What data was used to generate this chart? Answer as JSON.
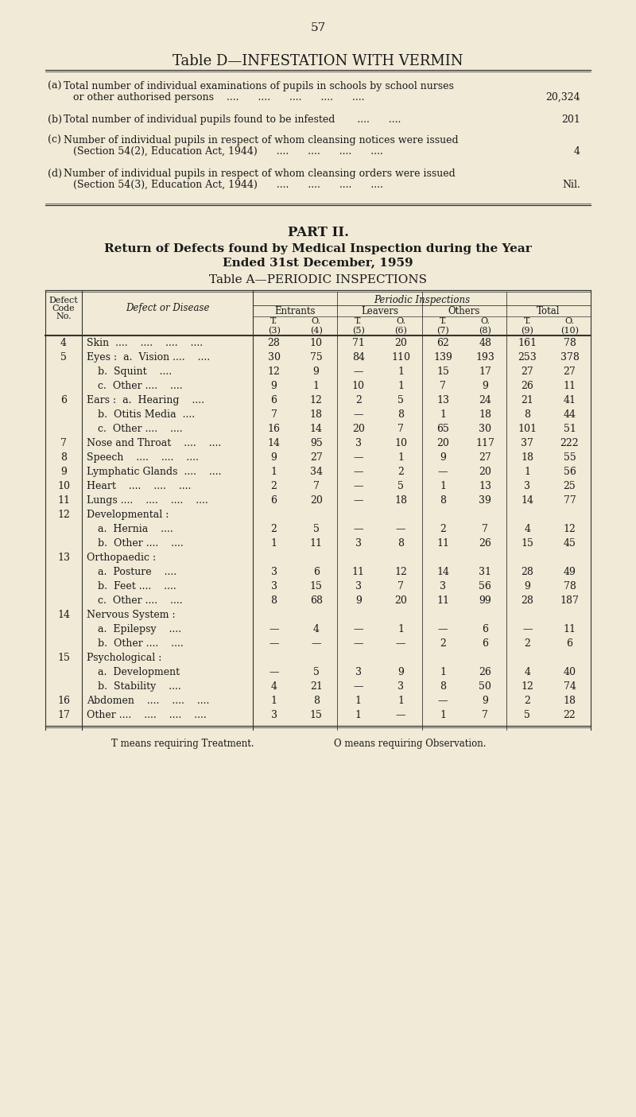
{
  "bg_color": "#f0ead6",
  "page_number": "57",
  "table_d_title": "Table D—INFESTATION WITH VERMIN",
  "table_d_rows": [
    {
      "label": "(a)",
      "text1": "Total number of individual examinations of pupils in schools by school nurses",
      "text2": "or other authorised persons    ....      ....      ....      ....      ....",
      "value": "20,324"
    },
    {
      "label": "(b)",
      "text1": "Total number of individual pupils found to be infested       ....      ....",
      "text2": "",
      "value": "201"
    },
    {
      "label": "(c)",
      "text1": "Number of individual pupils in respect of whom cleansing notices were issued",
      "text2": "(Section 54(2), Education Act, 1944)      ....      ....      ....      ....",
      "value": "4"
    },
    {
      "label": "(d)",
      "text1": "Number of individual pupils in respect of whom cleansing orders were issued",
      "text2": "(Section 54(3), Education Act, 1944)      ....      ....      ....      ....",
      "value": "Nil."
    }
  ],
  "part2_title": "PART II.",
  "part2_sub1": "Return of Defects found by Medical Inspection during the Year",
  "part2_sub2": "Ended 31st December, 1959",
  "table_a_title": "Table A—PERIODIC INSPECTIONS",
  "col_groups": [
    "Entrants",
    "Leavers",
    "Others",
    "Total"
  ],
  "col_subheaders": [
    "T.",
    "O.",
    "T.",
    "O.",
    "T.",
    "O.",
    "T.",
    "O."
  ],
  "col_nums": [
    "(3)",
    "(4)",
    "(5)",
    "(6)",
    "(7)",
    "(8)",
    "(9)",
    "(10)"
  ],
  "table_rows": [
    {
      "code": "4",
      "disease": "Skin  ....    ....    ....    ....",
      "indent": 0,
      "vals": [
        "28",
        "10",
        "71",
        "20",
        "62",
        "48",
        "161",
        "78"
      ]
    },
    {
      "code": "5",
      "disease": "Eyes :  a.  Vision ....    ....",
      "indent": 0,
      "vals": [
        "30",
        "75",
        "84",
        "110",
        "139",
        "193",
        "253",
        "378"
      ]
    },
    {
      "code": "",
      "disease": "b.  Squint    ....",
      "indent": 1,
      "vals": [
        "12",
        "9",
        "—",
        "1",
        "15",
        "17",
        "27",
        "27"
      ]
    },
    {
      "code": "",
      "disease": "c.  Other ....    ....",
      "indent": 1,
      "vals": [
        "9",
        "1",
        "10",
        "1",
        "7",
        "9",
        "26",
        "11"
      ]
    },
    {
      "code": "6",
      "disease": "Ears :  a.  Hearing    ....",
      "indent": 0,
      "vals": [
        "6",
        "12",
        "2",
        "5",
        "13",
        "24",
        "21",
        "41"
      ]
    },
    {
      "code": "",
      "disease": "b.  Otitis Media  ....",
      "indent": 1,
      "vals": [
        "7",
        "18",
        "—",
        "8",
        "1",
        "18",
        "8",
        "44"
      ]
    },
    {
      "code": "",
      "disease": "c.  Other ....    ....",
      "indent": 1,
      "vals": [
        "16",
        "14",
        "20",
        "7",
        "65",
        "30",
        "101",
        "51"
      ]
    },
    {
      "code": "7",
      "disease": "Nose and Throat    ....    ....",
      "indent": 0,
      "vals": [
        "14",
        "95",
        "3",
        "10",
        "20",
        "117",
        "37",
        "222"
      ]
    },
    {
      "code": "8",
      "disease": "Speech    ....    ....    ....",
      "indent": 0,
      "vals": [
        "9",
        "27",
        "—",
        "1",
        "9",
        "27",
        "18",
        "55"
      ]
    },
    {
      "code": "9",
      "disease": "Lymphatic Glands  ....    ....",
      "indent": 0,
      "vals": [
        "1",
        "34",
        "—",
        "2",
        "—",
        "20",
        "1",
        "56"
      ]
    },
    {
      "code": "10",
      "disease": "Heart    ....    ....    ....",
      "indent": 0,
      "vals": [
        "2",
        "7",
        "—",
        "5",
        "1",
        "13",
        "3",
        "25"
      ]
    },
    {
      "code": "11",
      "disease": "Lungs ....    ....    ....    ....",
      "indent": 0,
      "vals": [
        "6",
        "20",
        "—",
        "18",
        "8",
        "39",
        "14",
        "77"
      ]
    },
    {
      "code": "12",
      "disease": "Developmental :",
      "indent": 0,
      "vals": [
        "",
        "",
        "",
        "",
        "",
        "",
        "",
        ""
      ]
    },
    {
      "code": "",
      "disease": "a.  Hernia    ....",
      "indent": 1,
      "vals": [
        "2",
        "5",
        "—",
        "—",
        "2",
        "7",
        "4",
        "12"
      ]
    },
    {
      "code": "",
      "disease": "b.  Other ....    ....",
      "indent": 1,
      "vals": [
        "1",
        "11",
        "3",
        "8",
        "11",
        "26",
        "15",
        "45"
      ]
    },
    {
      "code": "13",
      "disease": "Orthopaedic :",
      "indent": 0,
      "vals": [
        "",
        "",
        "",
        "",
        "",
        "",
        "",
        ""
      ]
    },
    {
      "code": "",
      "disease": "a.  Posture    ....",
      "indent": 1,
      "vals": [
        "3",
        "6",
        "11",
        "12",
        "14",
        "31",
        "28",
        "49"
      ]
    },
    {
      "code": "",
      "disease": "b.  Feet ....    ....",
      "indent": 1,
      "vals": [
        "3",
        "15",
        "3",
        "7",
        "3",
        "56",
        "9",
        "78"
      ]
    },
    {
      "code": "",
      "disease": "c.  Other ....    ....",
      "indent": 1,
      "vals": [
        "8",
        "68",
        "9",
        "20",
        "11",
        "99",
        "28",
        "187"
      ]
    },
    {
      "code": "14",
      "disease": "Nervous System :",
      "indent": 0,
      "vals": [
        "",
        "",
        "",
        "",
        "",
        "",
        "",
        ""
      ]
    },
    {
      "code": "",
      "disease": "a.  Epilepsy    ....",
      "indent": 1,
      "vals": [
        "—",
        "4",
        "—",
        "1",
        "—",
        "6",
        "—",
        "11"
      ]
    },
    {
      "code": "",
      "disease": "b.  Other ....    ....",
      "indent": 1,
      "vals": [
        "—",
        "—",
        "—",
        "—",
        "2",
        "6",
        "2",
        "6"
      ]
    },
    {
      "code": "15",
      "disease": "Psychological :",
      "indent": 0,
      "vals": [
        "",
        "",
        "",
        "",
        "",
        "",
        "",
        ""
      ]
    },
    {
      "code": "",
      "disease": "a.  Development",
      "indent": 1,
      "vals": [
        "—",
        "5",
        "3",
        "9",
        "1",
        "26",
        "4",
        "40"
      ]
    },
    {
      "code": "",
      "disease": "b.  Stability    ....",
      "indent": 1,
      "vals": [
        "4",
        "21",
        "—",
        "3",
        "8",
        "50",
        "12",
        "74"
      ]
    },
    {
      "code": "16",
      "disease": "Abdomen    ....    ....    ....",
      "indent": 0,
      "vals": [
        "1",
        "8",
        "1",
        "1",
        "—",
        "9",
        "2",
        "18"
      ]
    },
    {
      "code": "17",
      "disease": "Other ....    ....    ....    ....",
      "indent": 0,
      "vals": [
        "3",
        "15",
        "1",
        "—",
        "1",
        "7",
        "5",
        "22"
      ]
    }
  ],
  "footnote_left": "T means requiring Treatment.",
  "footnote_right": "O means requiring Observation."
}
